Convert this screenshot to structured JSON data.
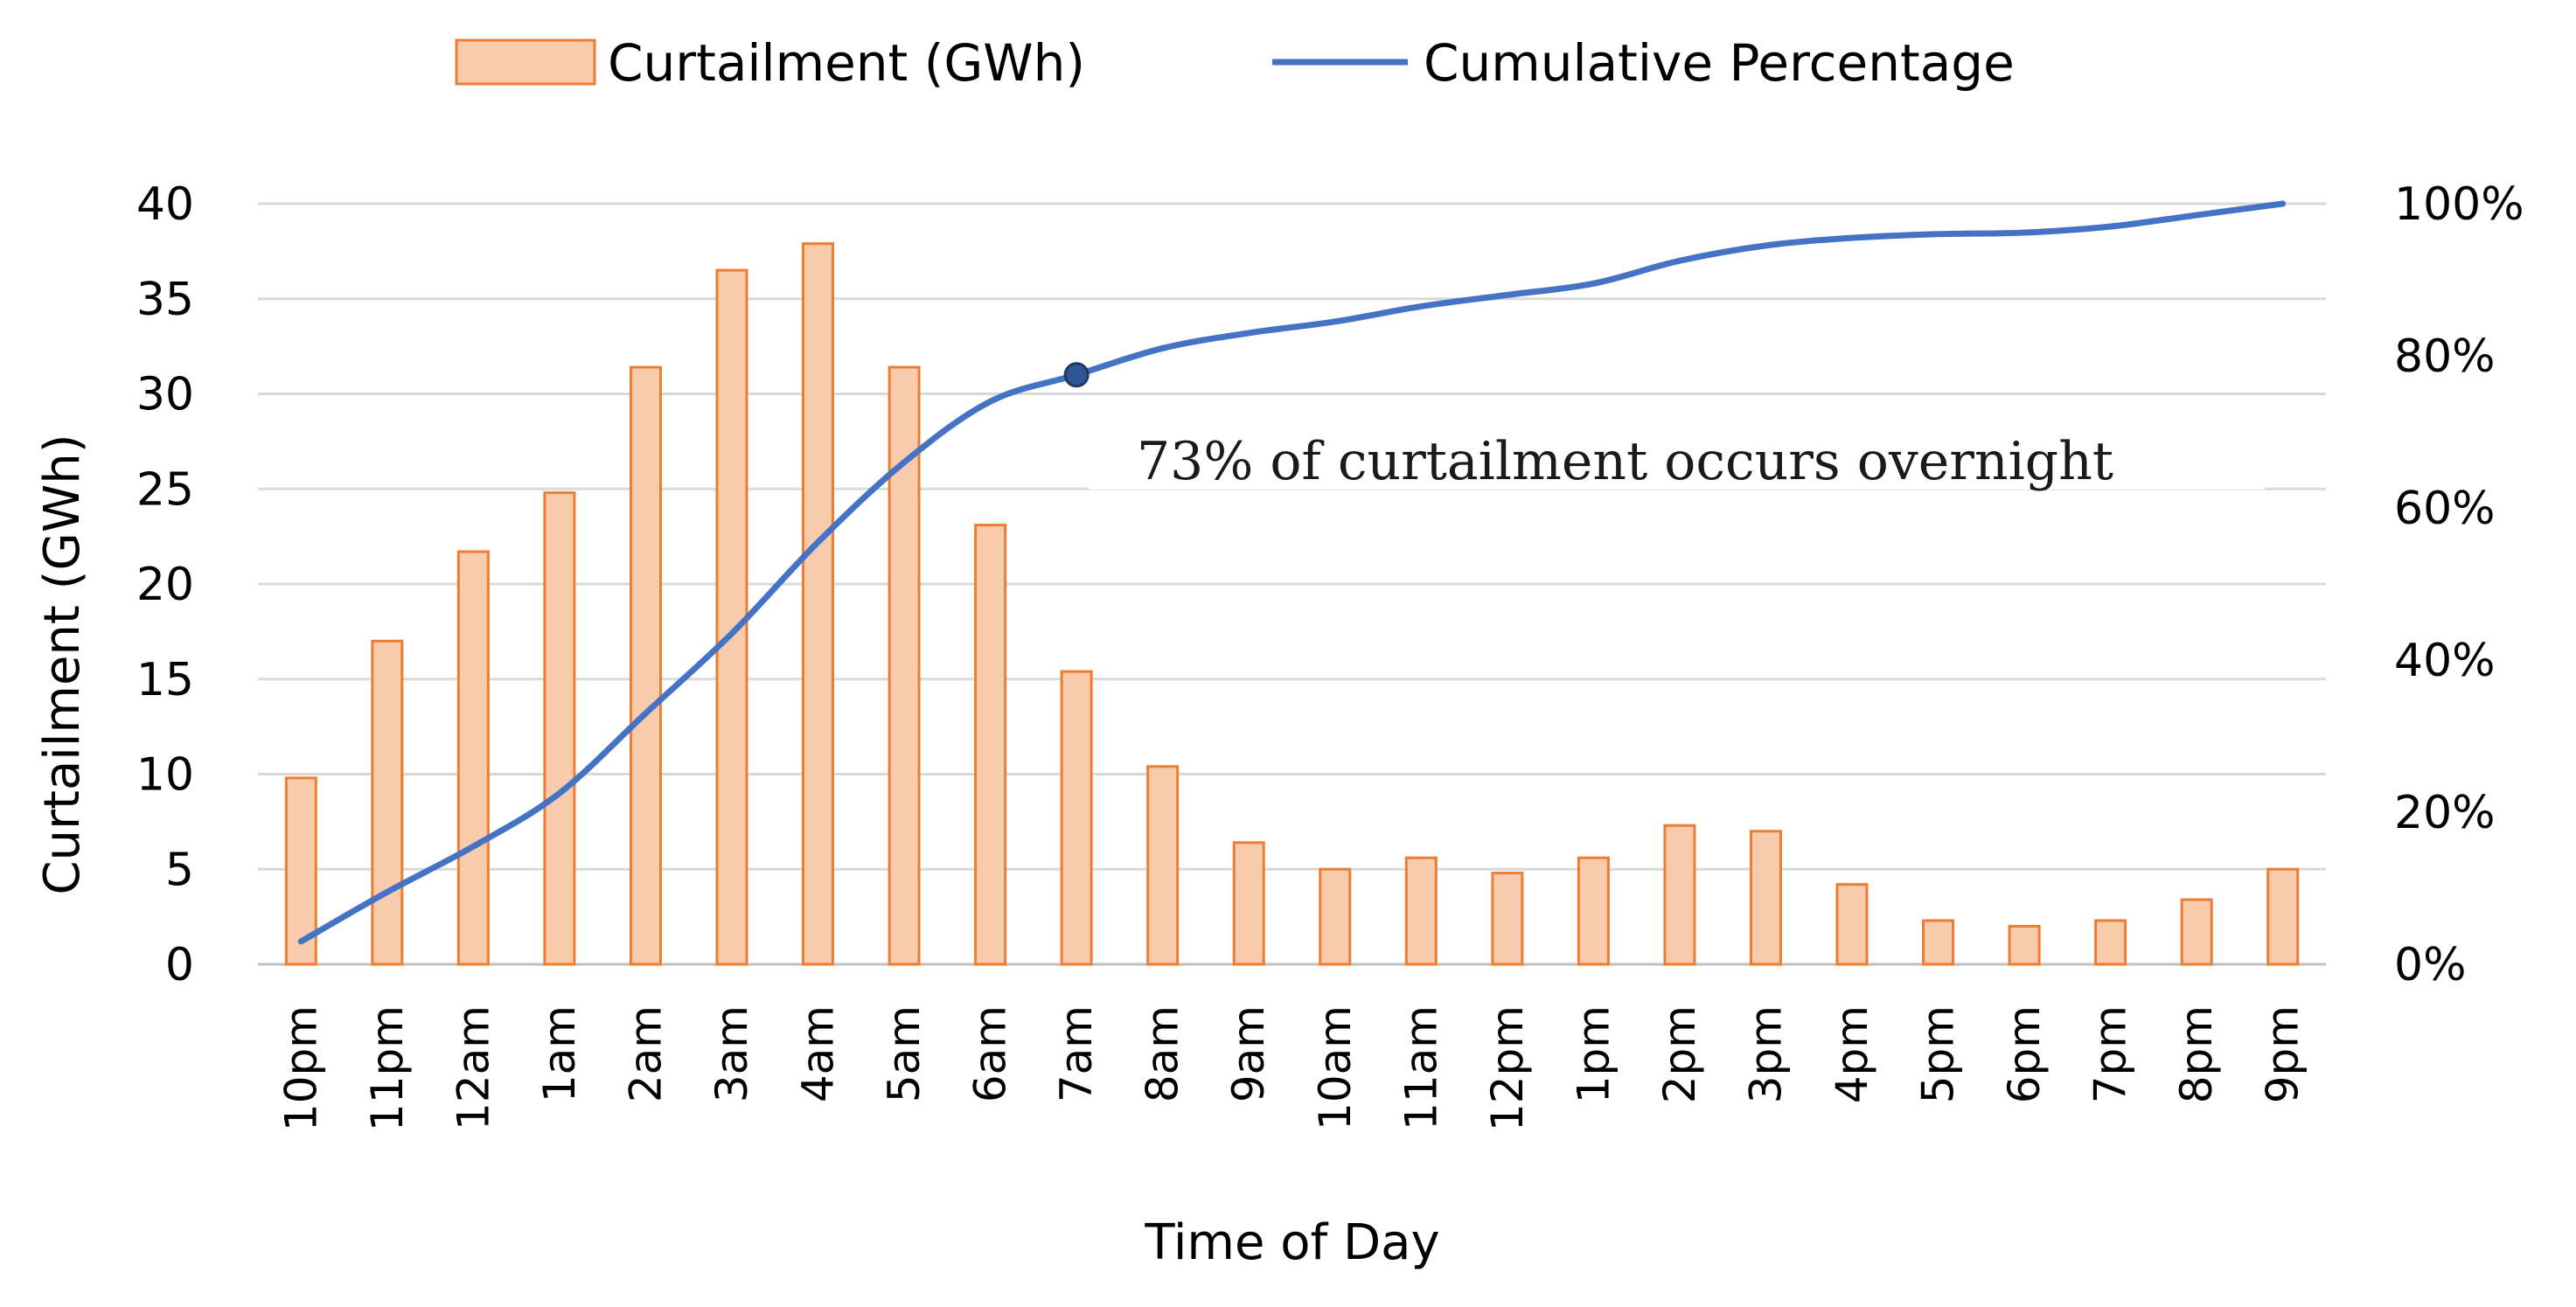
{
  "chart_data": {
    "type": "bar+line",
    "title": "",
    "categories": [
      "10pm",
      "11pm",
      "12am",
      "1am",
      "2am",
      "3am",
      "4am",
      "5am",
      "6am",
      "7am",
      "8am",
      "9am",
      "10am",
      "11am",
      "12pm",
      "1pm",
      "2pm",
      "3pm",
      "4pm",
      "5pm",
      "6pm",
      "7pm",
      "8pm",
      "9pm"
    ],
    "series": [
      {
        "name": "Curtailment (GWh)",
        "type": "bar",
        "axis": "left",
        "values": [
          9.8,
          17.0,
          21.7,
          24.8,
          31.4,
          36.5,
          37.9,
          31.4,
          23.1,
          15.4,
          10.4,
          6.4,
          5.0,
          5.6,
          4.8,
          5.6,
          7.3,
          7.0,
          4.2,
          2.3,
          2.0,
          2.3,
          3.4,
          5.0
        ],
        "fill_color": "#f8cbad",
        "stroke_color": "#ed7d31"
      },
      {
        "name": "Cumulative Percentage",
        "type": "line",
        "axis": "right",
        "values": [
          0.03,
          0.095,
          0.155,
          0.225,
          0.33,
          0.435,
          0.555,
          0.66,
          0.74,
          0.775,
          0.81,
          0.83,
          0.845,
          0.865,
          0.88,
          0.895,
          0.925,
          0.945,
          0.955,
          0.96,
          0.962,
          0.97,
          0.985,
          1.0
        ],
        "color": "#4472c4"
      }
    ],
    "xlabel": "Time of Day",
    "ylabel": "Curtailment (GWh)",
    "ylim": [
      0,
      40
    ],
    "y_ticks": [
      0,
      5,
      10,
      15,
      20,
      25,
      30,
      35,
      40
    ],
    "y2lim": [
      0,
      1
    ],
    "y2_ticks": [
      0,
      0.2,
      0.4,
      0.6,
      0.8,
      1.0
    ],
    "y2_tick_labels": [
      "0%",
      "20%",
      "40%",
      "60%",
      "80%",
      "100%"
    ],
    "grid": true,
    "legend_position": "top",
    "annotation": {
      "text": "73% of curtailment occurs overnight",
      "marker_category": "7am",
      "marker_value": 0.775
    }
  }
}
